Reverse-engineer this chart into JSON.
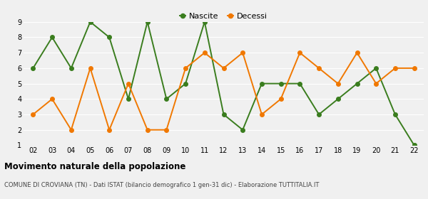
{
  "years": [
    "02",
    "03",
    "04",
    "05",
    "06",
    "07",
    "08",
    "09",
    "10",
    "11",
    "12",
    "13",
    "14",
    "15",
    "16",
    "17",
    "18",
    "19",
    "20",
    "21",
    "22"
  ],
  "nascite": [
    6,
    8,
    6,
    9,
    8,
    4,
    9,
    4,
    5,
    9,
    3,
    2,
    5,
    5,
    5,
    3,
    4,
    5,
    6,
    3,
    1
  ],
  "decessi": [
    3,
    4,
    2,
    6,
    2,
    5,
    2,
    2,
    6,
    7,
    6,
    7,
    3,
    4,
    7,
    6,
    5,
    7,
    5,
    6,
    6
  ],
  "nascite_color": "#3a7d1e",
  "decessi_color": "#f07800",
  "bg_color": "#f0f0f0",
  "grid_color": "#ffffff",
  "title": "Movimento naturale della popolazione",
  "subtitle": "COMUNE DI CROVIANA (TN) - Dati ISTAT (bilancio demografico 1 gen-31 dic) - Elaborazione TUTTITALIA.IT",
  "legend_nascite": "Nascite",
  "legend_decessi": "Decessi",
  "ylim_min": 1,
  "ylim_max": 9,
  "yticks": [
    1,
    2,
    3,
    4,
    5,
    6,
    7,
    8,
    9
  ]
}
